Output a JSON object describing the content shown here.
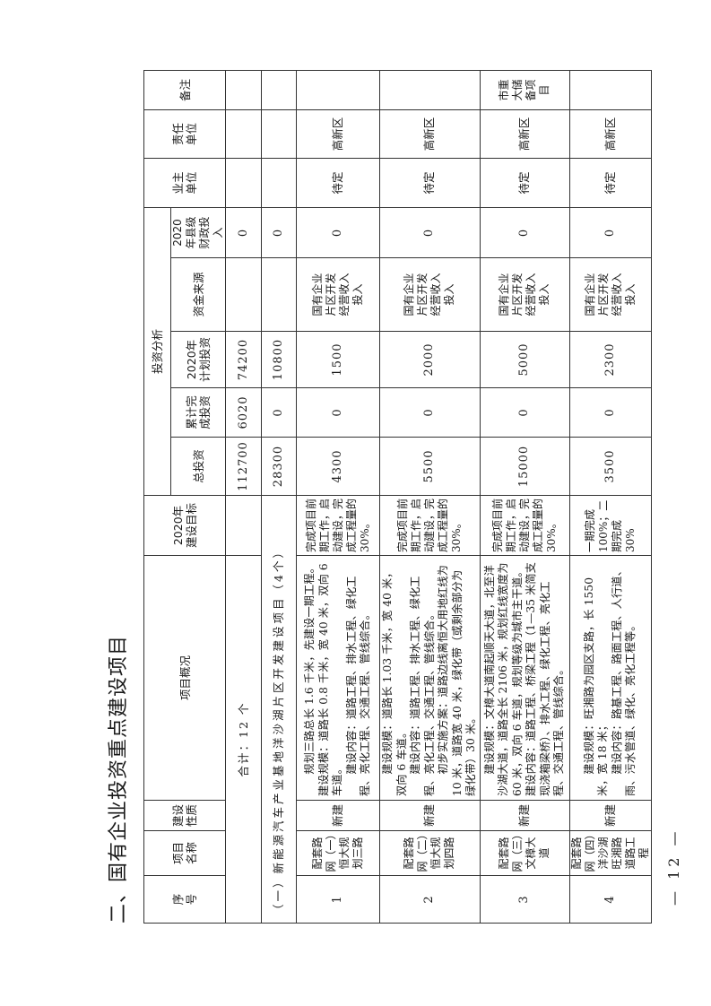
{
  "title": "二、国有企业投资重点建设项目",
  "page_number": "— 12 —",
  "header": {
    "seq": "序号",
    "name": "项目名称",
    "nature": "建设性质",
    "overview": "项目概况",
    "target": "2020年建设目标",
    "investment": "投资分析",
    "total": "总投资",
    "completed": "累计完成投资",
    "plan": "2020年计划投资",
    "source": "资金来源",
    "county": "2020年县级财政投入",
    "owner": "业主单位",
    "responsible": "责任单位",
    "remark": "备注"
  },
  "total_row": {
    "label": "合计：12 个",
    "total": "112700",
    "completed": "6020",
    "plan": "74200",
    "county": "0"
  },
  "section_row": {
    "label": "（一）新能源汽车产业基地洋沙湖片区开发建设项目（4个）",
    "total": "28300",
    "completed": "0",
    "plan": "10800",
    "county": "0"
  },
  "rows": [
    {
      "seq": "1",
      "name": "配套路网（一）恒大规划三路",
      "nature": "新建",
      "overview": [
        "规划三路总长 1.6 千米，先建设一期工程。建设规模：道路长 0.8 千米，宽 40 米，双向 6 车道。",
        "建设内容：道路工程、排水工程、绿化工程、亮化工程、交通工程、管线综合。"
      ],
      "target": "完成项目前期工作，启动建设，完成工程量的 30%。",
      "total": "4300",
      "completed": "0",
      "plan": "1500",
      "source": "国有企业片区开发经营收入投入",
      "county": "0",
      "owner": "待定",
      "responsible": "高新区",
      "remark": ""
    },
    {
      "seq": "2",
      "name": "配套路网（二）恒大规划四路",
      "nature": "新建",
      "overview": [
        "建设规模：道路长 1.03 千米，宽 40 米，双向 6 车道。",
        "建设内容：道路工程、排水工程、绿化工程、亮化工程、交通工程、管线综合。",
        "初步实施方案：道路边线离恒大用地红线为 10 米，道路宽 40 米，绿化带（或剩余部分为绿化带）30 米。"
      ],
      "target": "完成项目前期工作，启动建设，完成工程量的 30%。",
      "total": "5500",
      "completed": "0",
      "plan": "2000",
      "source": "国有企业片区开发经营收入投入",
      "county": "0",
      "owner": "待定",
      "responsible": "高新区",
      "remark": ""
    },
    {
      "seq": "3",
      "name": "配套路网（三）文樟大道",
      "nature": "新建",
      "overview": [
        "建设规模：文樟大道南起顺天大道，北至洋沙湖大道，道路全长 2106 米，规划红线宽度为 60 米，双向 6 车道，规划等级为城市主干道。建设内容：道路工程、桥梁工程（1—35 米简支现浇箱梁桥）、排水工程、绿化工程、亮化工程、交通工程、管线综合。"
      ],
      "target": "完成项目前期工作，启动建设，完成工程量的 30%。",
      "total": "15000",
      "completed": "0",
      "plan": "5000",
      "source": "国有企业片区开发经营收入投入",
      "county": "0",
      "owner": "待定",
      "responsible": "高新区",
      "remark": "市重大储备项目"
    },
    {
      "seq": "4",
      "name": "配套路网（四）洋沙湖旺湘路道路工程",
      "nature": "新建",
      "overview": [
        "建设规模：旺湘路为园区支路，长 1550 米，宽 18 米；",
        "建设内容：路基工程、路面工程、人行道、雨、污水管道、绿化、亮化工程等。"
      ],
      "target": "一期完成 100%；二期完成 30%",
      "total": "3500",
      "completed": "0",
      "plan": "2300",
      "source": "国有企业片区开发经营收入投入",
      "county": "0",
      "owner": "待定",
      "responsible": "高新区",
      "remark": ""
    }
  ]
}
